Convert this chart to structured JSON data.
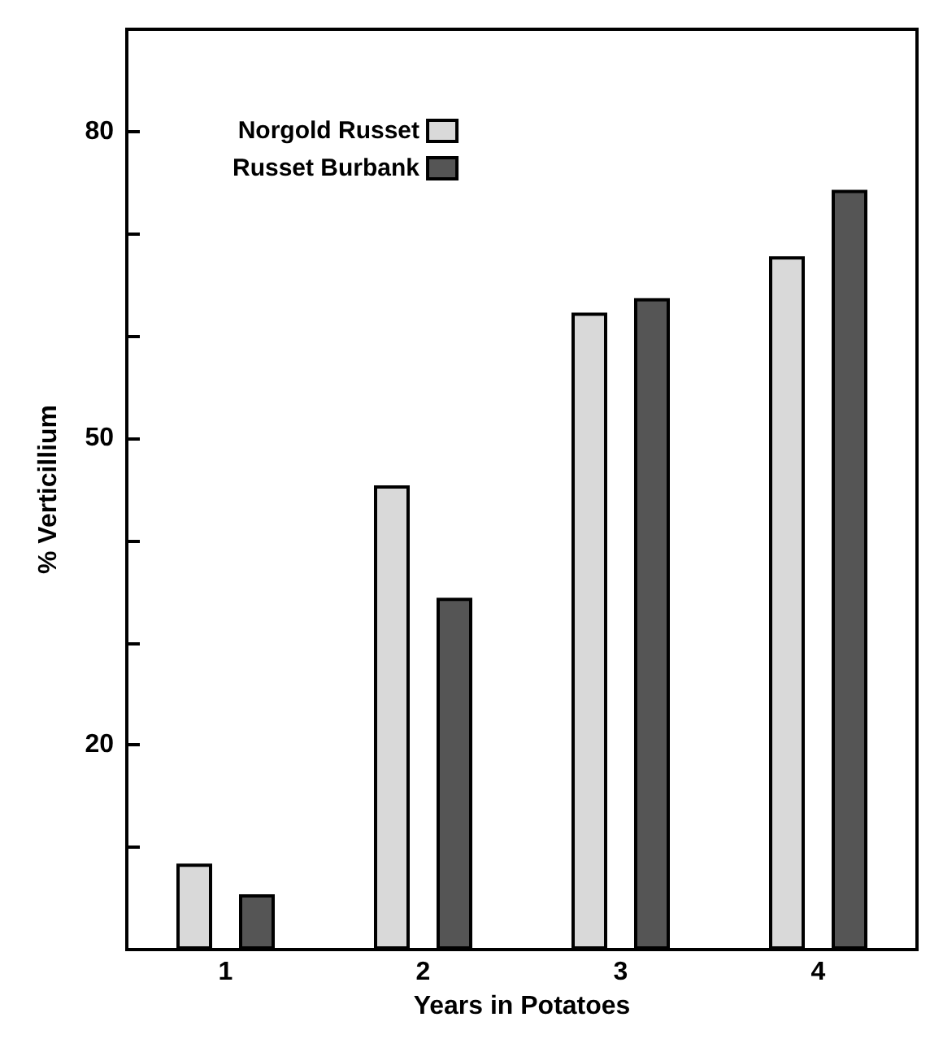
{
  "chart_data": {
    "type": "bar",
    "xlabel": "Years in Potatoes",
    "ylabel": "% Verticillium",
    "categories": [
      "1",
      "2",
      "3",
      "4"
    ],
    "series": [
      {
        "name": "Norgold Russet",
        "color": "#d9d9d9",
        "values": [
          8.4,
          45.4,
          62.3,
          67.8
        ]
      },
      {
        "name": "Russet Burbank",
        "color": "#555555",
        "values": [
          5.4,
          34.4,
          63.7,
          74.3
        ]
      }
    ],
    "ylim": [
      0,
      90
    ],
    "yticks": [
      {
        "value": 10,
        "label": null
      },
      20,
      {
        "value": 30,
        "label": null
      },
      {
        "value": 40,
        "label": null
      },
      50,
      {
        "value": 60,
        "label": null
      },
      {
        "value": 70,
        "label": null
      },
      80
    ],
    "grid": false,
    "legend": "top left"
  }
}
